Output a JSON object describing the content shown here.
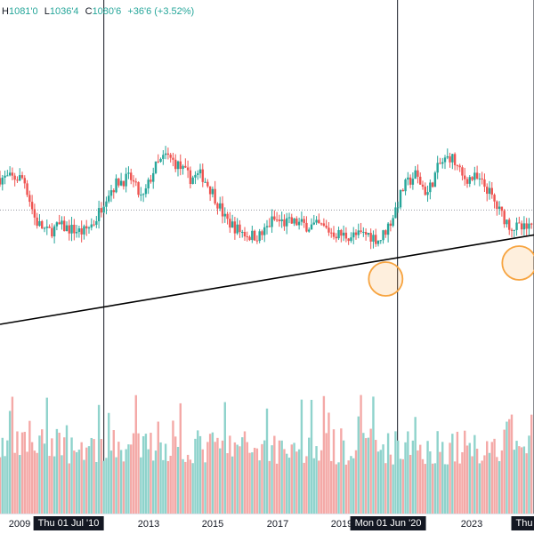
{
  "ohlc_bar": {
    "h_key": "H",
    "h_val": "1081'0",
    "l_key": "L",
    "l_val": "1036'4",
    "c_key": "C",
    "c_val": "1080'6",
    "change": "+36'6 (+3.52%)"
  },
  "x_axis": {
    "ticks": [
      "2009",
      "2013",
      "2015",
      "2017",
      "2019",
      "2023"
    ],
    "cursor_labels": [
      "Thu 01 Jul '10",
      "Mon 01 Jun '20",
      "Thu"
    ]
  },
  "colors": {
    "up": "#26a69a",
    "down": "#ef5350",
    "up_volume": "#8fd3cc",
    "down_volume": "#f4a9a7",
    "trendline": "#000000",
    "highlight": "#f7a440",
    "cursor_line": "#131722",
    "dotted_level": "#9598a1"
  },
  "chart_data": {
    "type": "candlestick",
    "x_range": [
      "2007",
      "2025"
    ],
    "price": {
      "years": [
        2007.8,
        2008.2,
        2008.6,
        2009.0,
        2009.4,
        2009.8,
        2010.2,
        2010.6,
        2011.0,
        2011.4,
        2011.8,
        2012.2,
        2012.6,
        2013.0,
        2013.4,
        2013.8,
        2014.2,
        2014.6,
        2015.0,
        2015.4,
        2015.8,
        2016.2,
        2016.6,
        2017.0,
        2017.4,
        2017.8,
        2018.2,
        2018.6,
        2019.0,
        2019.4,
        2019.8,
        2020.2,
        2020.6,
        2021.0,
        2021.4,
        2021.8,
        2022.2,
        2022.6,
        2023.0,
        2023.4,
        2023.8,
        2024.2,
        2024.6
      ],
      "close_relative": [
        0.72,
        0.45,
        0.38,
        0.42,
        0.4,
        0.38,
        0.45,
        0.62,
        0.7,
        0.72,
        0.58,
        0.78,
        0.86,
        0.8,
        0.72,
        0.74,
        0.62,
        0.46,
        0.4,
        0.36,
        0.36,
        0.46,
        0.44,
        0.44,
        0.42,
        0.42,
        0.38,
        0.36,
        0.36,
        0.37,
        0.33,
        0.46,
        0.66,
        0.74,
        0.62,
        0.8,
        0.86,
        0.72,
        0.72,
        0.66,
        0.52,
        0.42,
        0.4
      ]
    },
    "trendline": {
      "from_year": 2007.0,
      "to_year": 2025.0,
      "from_relative": 0.0,
      "to_relative": 0.42
    },
    "reference_level_relative": 0.52,
    "highlights": [
      {
        "year": 2020.0
      },
      {
        "year": 2024.5
      }
    ],
    "cursor_years": [
      2010.5,
      2020.4,
      2025.0
    ]
  }
}
